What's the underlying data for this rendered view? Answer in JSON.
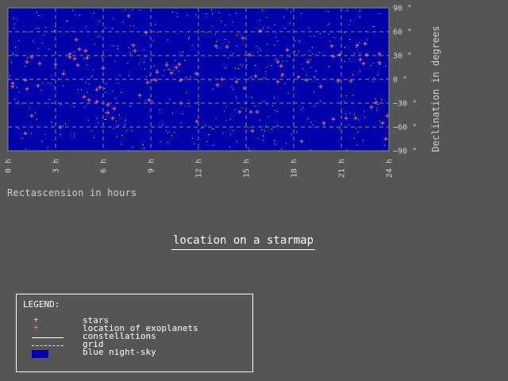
{
  "colors": {
    "page_background": "#555555",
    "sky": "#0000aa",
    "grid": "#888888",
    "star": "#ffd040",
    "exoplanet": "#ff7070",
    "text": "#cfcfcf"
  },
  "main": {
    "map_button_label": "location on a starmap",
    "xlabel": "Rectascension in hours",
    "ylabel": "Declination in degrees"
  },
  "legend": {
    "title": "LEGEND:",
    "items": [
      {
        "label": "stars",
        "symbol": "yellow-plus"
      },
      {
        "label": "location of exoplanets",
        "symbol": "red-plus"
      },
      {
        "label": "constellations",
        "symbol": "solid-line"
      },
      {
        "label": "grid",
        "symbol": "dashed-line"
      },
      {
        "label": "blue night-sky",
        "symbol": "blue-box"
      }
    ]
  },
  "chart_data": {
    "type": "scatter",
    "xlabel": "Rectascension in hours",
    "ylabel": "Declination in degrees",
    "xlim": [
      0,
      24
    ],
    "ylim": [
      -90,
      90
    ],
    "x_ticks": [
      0,
      3,
      6,
      9,
      12,
      15,
      18,
      21,
      24
    ],
    "x_tick_labels": [
      "0 h",
      "3 h",
      "6 h",
      "9 h",
      "12 h",
      "15 h",
      "18 h",
      "21 h",
      "24 h"
    ],
    "y_ticks": [
      90,
      60,
      30,
      0,
      -30,
      -60,
      -90
    ],
    "y_tick_labels": [
      "90 °",
      "60 °",
      "30 °",
      "0 °",
      "−30 °",
      "−60 °",
      "−90 °"
    ],
    "grid": true,
    "background": "#0000aa",
    "exoplanets": [
      [
        0.3,
        -5
      ],
      [
        0.3,
        -9
      ],
      [
        1.1,
        -1
      ],
      [
        1.2,
        22
      ],
      [
        1.2,
        -12
      ],
      [
        1.1,
        -68
      ],
      [
        1.5,
        -46
      ],
      [
        1.5,
        28
      ],
      [
        2.0,
        20
      ],
      [
        1.9,
        -8
      ],
      [
        3.0,
        19
      ],
      [
        3.3,
        -60
      ],
      [
        3.5,
        7
      ],
      [
        3.9,
        28
      ],
      [
        3.9,
        32
      ],
      [
        4.3,
        50
      ],
      [
        4.2,
        26
      ],
      [
        4.5,
        38
      ],
      [
        4.4,
        18
      ],
      [
        4.8,
        -22
      ],
      [
        4.9,
        36
      ],
      [
        5.0,
        27
      ],
      [
        5.1,
        -26
      ],
      [
        5.6,
        -28
      ],
      [
        5.6,
        -13
      ],
      [
        5.8,
        -10
      ],
      [
        6.0,
        14
      ],
      [
        6.3,
        -32
      ],
      [
        6.3,
        -42
      ],
      [
        6.6,
        -49
      ],
      [
        6.7,
        -37
      ],
      [
        7.6,
        80
      ],
      [
        7.9,
        43
      ],
      [
        8.0,
        36
      ],
      [
        8.3,
        -20
      ],
      [
        8.7,
        59
      ],
      [
        8.8,
        -4
      ],
      [
        8.9,
        -26
      ],
      [
        9.3,
        -1
      ],
      [
        9.4,
        9
      ],
      [
        10.0,
        18
      ],
      [
        10.3,
        8
      ],
      [
        10.6,
        15
      ],
      [
        10.8,
        19
      ],
      [
        10.9,
        -1
      ],
      [
        10.9,
        -30
      ],
      [
        11.9,
        7
      ],
      [
        11.9,
        -53
      ],
      [
        13.1,
        42
      ],
      [
        13.2,
        -7
      ],
      [
        13.5,
        0
      ],
      [
        13.8,
        41
      ],
      [
        14.4,
        -3
      ],
      [
        14.6,
        -41
      ],
      [
        14.8,
        52
      ],
      [
        14.9,
        -11
      ],
      [
        15.2,
        31
      ],
      [
        15.3,
        -41
      ],
      [
        15.4,
        -65
      ],
      [
        15.6,
        4
      ],
      [
        15.7,
        -41
      ],
      [
        15.9,
        61
      ],
      [
        17.0,
        22
      ],
      [
        17.0,
        -3
      ],
      [
        17.2,
        17
      ],
      [
        17.3,
        6
      ],
      [
        17.6,
        37
      ],
      [
        18.3,
        3
      ],
      [
        18.5,
        -78
      ],
      [
        18.8,
        -1
      ],
      [
        18.9,
        22
      ],
      [
        19.7,
        -9
      ],
      [
        19.9,
        -55
      ],
      [
        20.4,
        42
      ],
      [
        20.5,
        29
      ],
      [
        20.5,
        -50
      ],
      [
        20.8,
        -2
      ],
      [
        20.9,
        31
      ],
      [
        21.3,
        -49
      ],
      [
        21.6,
        -2
      ],
      [
        21.9,
        -49
      ],
      [
        22.0,
        43
      ],
      [
        22.2,
        25
      ],
      [
        22.4,
        20
      ],
      [
        22.5,
        45
      ],
      [
        22.6,
        31
      ],
      [
        22.9,
        -35
      ],
      [
        23.2,
        -29
      ],
      [
        23.4,
        21
      ],
      [
        23.4,
        32
      ],
      [
        23.6,
        -55
      ],
      [
        23.8,
        -75
      ],
      [
        23.9,
        -46
      ]
    ]
  }
}
